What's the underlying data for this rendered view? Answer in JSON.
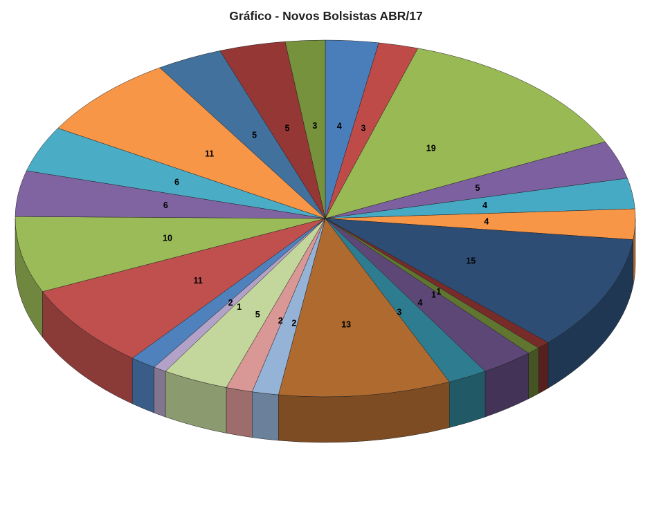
{
  "chart_data": {
    "type": "pie",
    "title": "Gráfico - Novos Bolsistas ABR/17",
    "title_color": "#1f1f1f",
    "is_3d": true,
    "background": "#ffffff",
    "legend": "none",
    "data_labels": "value",
    "start_angle_deg": -90,
    "direction": "clockwise",
    "total": 145,
    "slices": [
      {
        "value": 4,
        "color": "#4A7EBB"
      },
      {
        "value": 3,
        "color": "#BE4B48"
      },
      {
        "value": 19,
        "color": "#98B954"
      },
      {
        "value": 5,
        "color": "#7D60A0"
      },
      {
        "value": 4,
        "color": "#46AAC5"
      },
      {
        "value": 4,
        "color": "#F79646"
      },
      {
        "value": 15,
        "color": "#2D4D75"
      },
      {
        "value": 1,
        "color": "#772C2A"
      },
      {
        "value": 1,
        "color": "#5F7530"
      },
      {
        "value": 4,
        "color": "#5D4777"
      },
      {
        "value": 3,
        "color": "#2E7C8F"
      },
      {
        "value": 13,
        "color": "#AE6A2F"
      },
      {
        "value": 2,
        "color": "#95B3D7"
      },
      {
        "value": 2,
        "color": "#D99795"
      },
      {
        "value": 5,
        "color": "#C3D69B"
      },
      {
        "value": 1,
        "color": "#B3A2C7"
      },
      {
        "value": 2,
        "color": "#4F81BD"
      },
      {
        "value": 11,
        "color": "#C0504D"
      },
      {
        "value": 10,
        "color": "#9BBB59"
      },
      {
        "value": 6,
        "color": "#8064A2"
      },
      {
        "value": 6,
        "color": "#4BACC6"
      },
      {
        "value": 11,
        "color": "#F79646"
      },
      {
        "value": 5,
        "color": "#41719C"
      },
      {
        "value": 5,
        "color": "#953735"
      },
      {
        "value": 3,
        "color": "#76923C"
      }
    ]
  }
}
